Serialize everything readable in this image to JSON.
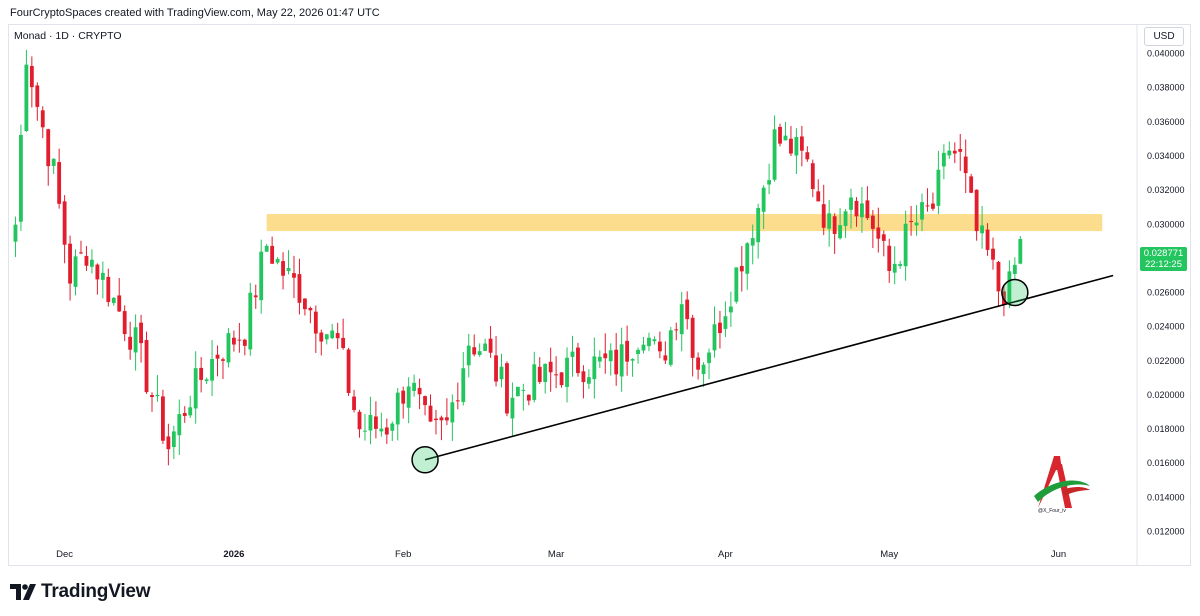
{
  "caption": "FourCryptoSpaces created with TradingView.com, May 22, 2026 01:47 UTC",
  "symbol_line": "Monad · 1D · CRYPTO",
  "currency": "USD",
  "last_price": {
    "value": "0.028771",
    "countdown": "22:12:25",
    "color": "#22c55e"
  },
  "footer": {
    "logo_icon": "tradingview-logo-icon",
    "wordmark": "TradingView"
  },
  "watermark": {
    "icon": "x-four-logo-icon",
    "label": "@X_Four_iv"
  },
  "colors": {
    "up": "#22c55e",
    "down": "#e11d2e",
    "zone": "#fbd77a",
    "trendline": "#000000"
  },
  "chart_data": {
    "type": "candlestick",
    "series": [
      {
        "name": "Monad",
        "interval": "1D"
      }
    ],
    "x_ticks": [
      {
        "label": "Dec",
        "date": "2025-12-01"
      },
      {
        "label": "2026",
        "date": "2026-01-01",
        "bold": true
      },
      {
        "label": "Feb",
        "date": "2026-02-01"
      },
      {
        "label": "Mar",
        "date": "2026-03-01"
      },
      {
        "label": "Apr",
        "date": "2026-04-01"
      },
      {
        "label": "May",
        "date": "2026-05-01"
      },
      {
        "label": "Jun",
        "date": "2026-06-01"
      }
    ],
    "y_ticks": [
      "0.040000",
      "0.038000",
      "0.036000",
      "0.034000",
      "0.032000",
      "0.030000",
      "0.026000",
      "0.024000",
      "0.022000",
      "0.020000",
      "0.018000",
      "0.016000",
      "0.014000",
      "0.012000"
    ],
    "ylim": [
      0.0115,
      0.0415
    ],
    "xlim": [
      "2025-11-21",
      "2026-06-15"
    ],
    "close_waypoints": [
      [
        "2025-11-22",
        0.03
      ],
      [
        "2025-11-24",
        0.0402
      ],
      [
        "2025-11-26",
        0.037
      ],
      [
        "2025-11-29",
        0.033
      ],
      [
        "2025-12-02",
        0.027
      ],
      [
        "2025-12-05",
        0.0285
      ],
      [
        "2025-12-09",
        0.0262
      ],
      [
        "2025-12-14",
        0.023
      ],
      [
        "2025-12-20",
        0.017
      ],
      [
        "2025-12-24",
        0.02
      ],
      [
        "2025-12-29",
        0.0225
      ],
      [
        "2026-01-03",
        0.0238
      ],
      [
        "2026-01-07",
        0.0288
      ],
      [
        "2026-01-10",
        0.0272
      ],
      [
        "2026-01-13",
        0.0262
      ],
      [
        "2026-01-16",
        0.0245
      ],
      [
        "2026-01-20",
        0.023
      ],
      [
        "2026-01-24",
        0.018
      ],
      [
        "2026-01-29",
        0.0182
      ],
      [
        "2026-02-02",
        0.021
      ],
      [
        "2026-02-06",
        0.0175
      ],
      [
        "2026-02-09",
        0.0182
      ],
      [
        "2026-02-13",
        0.0232
      ],
      [
        "2026-02-16",
        0.0226
      ],
      [
        "2026-02-20",
        0.02
      ],
      [
        "2026-02-27",
        0.021
      ],
      [
        "2026-03-05",
        0.0218
      ],
      [
        "2026-03-12",
        0.0218
      ],
      [
        "2026-03-17",
        0.024
      ],
      [
        "2026-03-20",
        0.0218
      ],
      [
        "2026-03-24",
        0.0258
      ],
      [
        "2026-03-27",
        0.0218
      ],
      [
        "2026-03-30",
        0.0235
      ],
      [
        "2026-04-03",
        0.0272
      ],
      [
        "2026-04-07",
        0.031
      ],
      [
        "2026-04-10",
        0.035
      ],
      [
        "2026-04-13",
        0.0345
      ],
      [
        "2026-04-16",
        0.0335
      ],
      [
        "2026-04-20",
        0.0298
      ],
      [
        "2026-04-24",
        0.032
      ],
      [
        "2026-04-28",
        0.03
      ],
      [
        "2026-05-01",
        0.0272
      ],
      [
        "2026-05-05",
        0.0298
      ],
      [
        "2026-05-09",
        0.031
      ],
      [
        "2026-05-12",
        0.0345
      ],
      [
        "2026-05-14",
        0.0338
      ],
      [
        "2026-05-17",
        0.0295
      ],
      [
        "2026-05-19",
        0.0282
      ],
      [
        "2026-05-21",
        0.0262
      ],
      [
        "2026-05-23",
        0.0262
      ],
      [
        "2026-05-25",
        0.0288
      ]
    ],
    "resistance_zone": {
      "low": 0.0296,
      "high": 0.0306,
      "from": "2026-01-07",
      "to": "2026-06-09"
    },
    "trendline": {
      "from": [
        "2026-02-05",
        0.0162
      ],
      "to": [
        "2026-06-11",
        0.027
      ]
    },
    "highlight_circles": [
      {
        "date": "2026-02-05",
        "price": 0.0162
      },
      {
        "date": "2026-05-24",
        "price": 0.026
      }
    ]
  }
}
